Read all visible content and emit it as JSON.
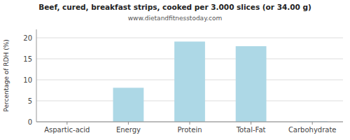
{
  "chart_data": {
    "type": "bar",
    "title": "Beef, cured, breakfast strips, cooked per 3.000 slices (or 34.00 g)",
    "subtitle": "www.dietandfitnesstoday.com",
    "ylabel": "Percentage of RDH (%)",
    "categories": [
      "Aspartic-acid",
      "Energy",
      "Protein",
      "Total-Fat",
      "Carbohydrate"
    ],
    "values": [
      0.0,
      8.1,
      19.1,
      18.0,
      0.1
    ],
    "color": "#add8e6",
    "ylim": [
      0,
      22
    ],
    "yticks": [
      0,
      5,
      10,
      15,
      20
    ],
    "grid": true
  }
}
